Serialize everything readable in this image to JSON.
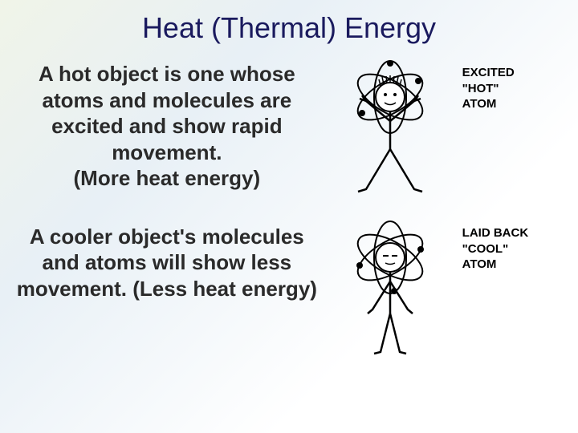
{
  "title": "Heat (Thermal) Energy",
  "hot_para": "A hot object is one whose atoms and molecules are excited and show rapid movement.\n(More heat energy)",
  "cool_para": "A cooler object's molecules and atoms will show less movement. (Less heat energy)",
  "hot_label_line1": "EXCITED",
  "hot_label_line2": "\"HOT\"",
  "hot_label_line3": "ATOM",
  "cool_label_line1": "LAID BACK",
  "cool_label_line2": "\"COOL\"",
  "cool_label_line3": "ATOM",
  "colors": {
    "title": "#1a1a5e",
    "text": "#2a2a2a",
    "stroke": "#000000",
    "background_start": "#f0f4e8",
    "background_end": "#ffffff"
  },
  "typography": {
    "title_fontsize": 36,
    "para_fontsize": 26,
    "label_fontsize": 15
  },
  "figures": {
    "hot_atom": {
      "type": "stick-figure-excited-atom",
      "pose": "arms-up-legs-spread"
    },
    "cool_atom": {
      "type": "stick-figure-relaxed-atom",
      "pose": "arms-down-legs-together"
    }
  }
}
